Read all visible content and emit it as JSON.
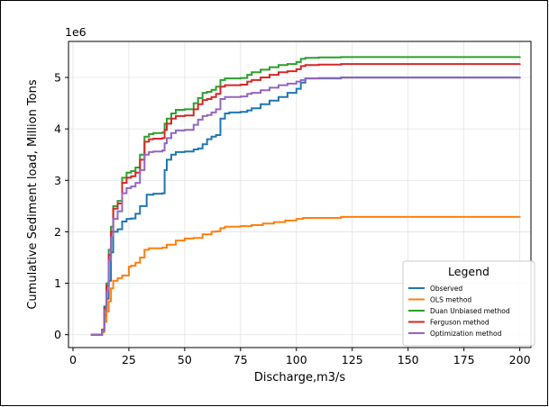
{
  "chart_data": {
    "type": "line",
    "title": "",
    "xlabel": "Discharge,m3/s",
    "ylabel": "Cumulative Sediment load, Million Tons",
    "y_offset_text": "1e6",
    "xlim": [
      -2,
      205
    ],
    "ylim": [
      -250000,
      5700000
    ],
    "x_ticks": [
      0,
      25,
      50,
      75,
      100,
      125,
      150,
      175,
      200
    ],
    "y_ticks": [
      0,
      1000000,
      2000000,
      3000000,
      4000000,
      5000000
    ],
    "y_tick_labels": [
      "0",
      "1",
      "2",
      "3",
      "4",
      "5"
    ],
    "grid": true,
    "legend": {
      "title": "Legend",
      "placement": "lower-right"
    },
    "series": [
      {
        "name": "Observed",
        "color": "#1f77b4",
        "x": [
          8,
          12,
          13,
          14,
          15,
          16,
          17,
          18,
          20,
          22,
          24,
          26,
          28,
          30,
          33,
          36,
          40,
          41,
          42,
          44,
          46,
          50,
          54,
          56,
          58,
          60,
          62,
          64,
          66,
          68,
          70,
          75,
          78,
          80,
          84,
          88,
          92,
          96,
          100,
          102,
          104,
          120,
          200
        ],
        "y": [
          0,
          0,
          80000,
          380000,
          700000,
          1050000,
          1600000,
          2000000,
          2050000,
          2200000,
          2250000,
          2260000,
          2350000,
          2500000,
          2720000,
          2740000,
          2750000,
          3200000,
          3400000,
          3500000,
          3550000,
          3560000,
          3600000,
          3620000,
          3700000,
          3800000,
          3850000,
          3880000,
          4200000,
          4300000,
          4320000,
          4330000,
          4360000,
          4400000,
          4480000,
          4550000,
          4620000,
          4700000,
          4780000,
          4900000,
          4980000,
          5000000,
          5010000
        ]
      },
      {
        "name": "OLS method",
        "color": "#ff7f0e",
        "x": [
          8,
          12,
          13,
          14,
          15,
          16,
          17,
          18,
          20,
          22,
          25,
          26,
          28,
          30,
          32,
          34,
          40,
          42,
          46,
          50,
          54,
          58,
          62,
          64,
          66,
          68,
          75,
          80,
          85,
          90,
          95,
          100,
          103,
          120,
          200
        ],
        "y": [
          0,
          0,
          50000,
          250000,
          450000,
          650000,
          900000,
          1050000,
          1100000,
          1150000,
          1320000,
          1340000,
          1400000,
          1500000,
          1650000,
          1680000,
          1690000,
          1750000,
          1830000,
          1870000,
          1880000,
          1950000,
          2000000,
          2010000,
          2070000,
          2100000,
          2110000,
          2130000,
          2160000,
          2190000,
          2220000,
          2250000,
          2270000,
          2290000,
          2300000
        ]
      },
      {
        "name": "Duan Unbiased method",
        "color": "#2ca02c",
        "x": [
          8,
          12,
          13,
          14,
          15,
          16,
          17,
          18,
          20,
          22,
          24,
          26,
          28,
          30,
          32,
          34,
          36,
          40,
          41,
          42,
          44,
          46,
          50,
          54,
          56,
          58,
          60,
          62,
          64,
          66,
          68,
          75,
          78,
          80,
          84,
          88,
          92,
          96,
          100,
          102,
          104,
          110,
          120,
          200
        ],
        "y": [
          0,
          0,
          100000,
          550000,
          1000000,
          1650000,
          2100000,
          2500000,
          2600000,
          3050000,
          3150000,
          3180000,
          3250000,
          3500000,
          3850000,
          3900000,
          3920000,
          3930000,
          4100000,
          4200000,
          4300000,
          4370000,
          4380000,
          4500000,
          4600000,
          4700000,
          4720000,
          4760000,
          4820000,
          4950000,
          4980000,
          4990000,
          5050000,
          5100000,
          5150000,
          5200000,
          5240000,
          5260000,
          5300000,
          5360000,
          5380000,
          5390000,
          5395000,
          5410000
        ]
      },
      {
        "name": "Ferguson method",
        "color": "#d62728",
        "x": [
          8,
          12,
          13,
          14,
          15,
          16,
          17,
          18,
          20,
          22,
          24,
          26,
          28,
          30,
          32,
          34,
          36,
          40,
          41,
          42,
          44,
          46,
          50,
          54,
          56,
          58,
          60,
          62,
          64,
          66,
          68,
          75,
          78,
          80,
          84,
          88,
          92,
          96,
          100,
          102,
          104,
          110,
          120,
          200
        ],
        "y": [
          0,
          0,
          90000,
          520000,
          950000,
          1550000,
          2000000,
          2450000,
          2550000,
          2950000,
          3050000,
          3080000,
          3150000,
          3400000,
          3750000,
          3800000,
          3810000,
          3820000,
          3980000,
          4100000,
          4200000,
          4250000,
          4260000,
          4380000,
          4480000,
          4560000,
          4580000,
          4620000,
          4680000,
          4820000,
          4850000,
          4860000,
          4920000,
          4950000,
          5000000,
          5050000,
          5100000,
          5120000,
          5160000,
          5220000,
          5240000,
          5250000,
          5260000,
          5270000
        ]
      },
      {
        "name": "Optimization method",
        "color": "#9467bd",
        "x": [
          8,
          12,
          13,
          14,
          15,
          16,
          17,
          18,
          20,
          22,
          24,
          26,
          28,
          30,
          32,
          34,
          36,
          40,
          41,
          42,
          44,
          46,
          50,
          54,
          56,
          58,
          60,
          62,
          64,
          66,
          68,
          75,
          78,
          80,
          84,
          88,
          92,
          96,
          100,
          102,
          104,
          110,
          120,
          200
        ],
        "y": [
          0,
          0,
          80000,
          480000,
          850000,
          1450000,
          1900000,
          2250000,
          2400000,
          2750000,
          2850000,
          2880000,
          2950000,
          3200000,
          3500000,
          3550000,
          3560000,
          3580000,
          3720000,
          3820000,
          3920000,
          3970000,
          3980000,
          4080000,
          4180000,
          4250000,
          4270000,
          4320000,
          4380000,
          4580000,
          4620000,
          4630000,
          4680000,
          4700000,
          4750000,
          4800000,
          4850000,
          4880000,
          4920000,
          4950000,
          4980000,
          4990000,
          4995000,
          5000000
        ]
      }
    ]
  }
}
